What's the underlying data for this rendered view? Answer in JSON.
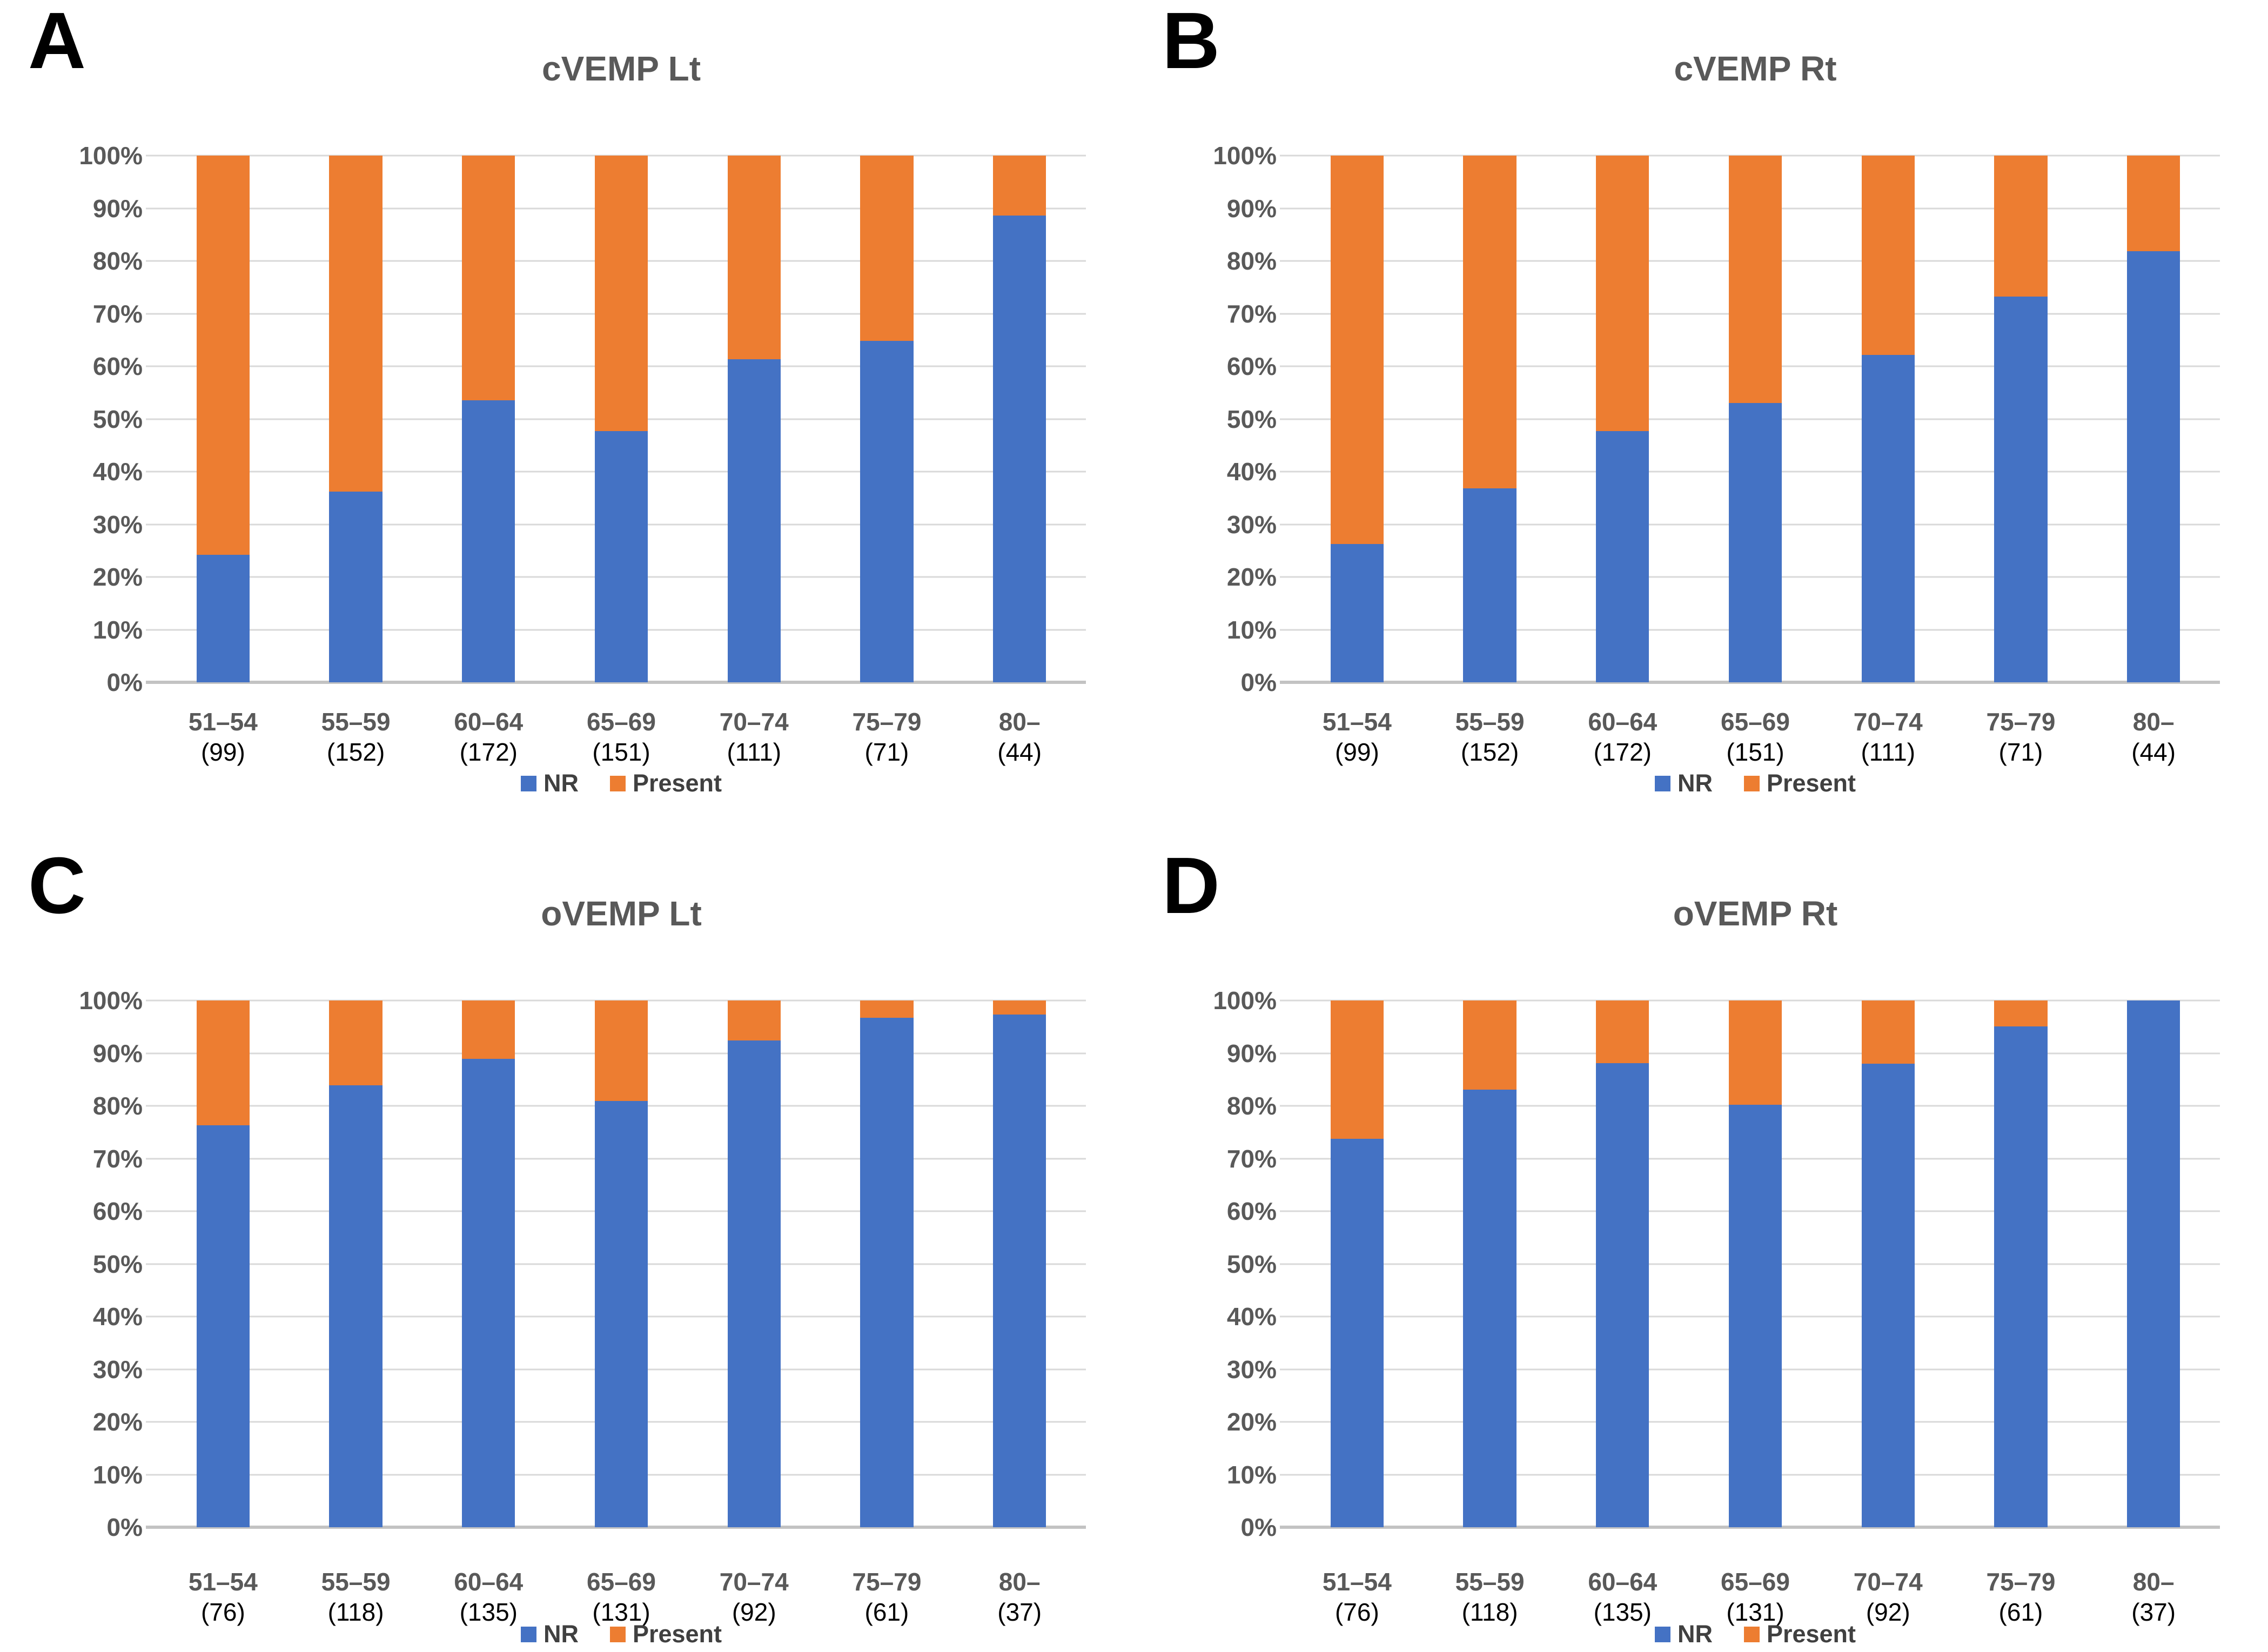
{
  "y_axis_ticks": [
    "100%",
    "90%",
    "80%",
    "70%",
    "60%",
    "50%",
    "40%",
    "30%",
    "20%",
    "10%",
    "0%"
  ],
  "colors": {
    "nr": "#4472C4",
    "present": "#ED7D31",
    "gridline": "#D9D9D9",
    "axis_line": "#C3C3C3",
    "axis_text": "#595959",
    "title_text": "#595959",
    "count_text": "#000000",
    "legend_text": "#404040"
  },
  "chart_data": [
    {
      "type": "bar",
      "stacked": true,
      "panel_label": "A",
      "title": "cVEMP Lt",
      "categories": [
        "51–54",
        "55–59",
        "60–64",
        "65–69",
        "70–74",
        "75–79",
        "80–"
      ],
      "counts": [
        "(99)",
        "(152)",
        "(172)",
        "(151)",
        "(111)",
        "(71)",
        "(44)"
      ],
      "series": [
        {
          "name": "NR",
          "color": "#4472C4",
          "values": [
            24.2,
            36.2,
            53.5,
            47.7,
            61.3,
            64.8,
            88.6
          ]
        },
        {
          "name": "Present",
          "color": "#ED7D31",
          "values": [
            75.8,
            63.8,
            46.5,
            52.3,
            38.7,
            35.2,
            11.4
          ]
        }
      ],
      "ylim": [
        0,
        100
      ],
      "y_tick_step": 10,
      "grid": true,
      "legend_position": "bottom"
    },
    {
      "type": "bar",
      "stacked": true,
      "panel_label": "B",
      "title": "cVEMP Rt",
      "categories": [
        "51–54",
        "55–59",
        "60–64",
        "65–69",
        "70–74",
        "75–79",
        "80–"
      ],
      "counts": [
        "(99)",
        "(152)",
        "(172)",
        "(151)",
        "(111)",
        "(71)",
        "(44)"
      ],
      "series": [
        {
          "name": "NR",
          "color": "#4472C4",
          "values": [
            26.3,
            36.8,
            47.7,
            53.0,
            62.2,
            73.2,
            81.8
          ]
        },
        {
          "name": "Present",
          "color": "#ED7D31",
          "values": [
            73.7,
            63.2,
            52.3,
            47.0,
            37.8,
            26.8,
            18.2
          ]
        }
      ],
      "ylim": [
        0,
        100
      ],
      "y_tick_step": 10,
      "grid": true,
      "legend_position": "bottom"
    },
    {
      "type": "bar",
      "stacked": true,
      "panel_label": "C",
      "title": "oVEMP Lt",
      "categories": [
        "51–54",
        "55–59",
        "60–64",
        "65–69",
        "70–74",
        "75–79",
        "80–"
      ],
      "counts": [
        "(76)",
        "(118)",
        "(135)",
        "(131)",
        "(92)",
        "(61)",
        "(37)"
      ],
      "series": [
        {
          "name": "NR",
          "color": "#4472C4",
          "values": [
            76.3,
            83.9,
            88.9,
            80.9,
            92.4,
            96.7,
            97.3
          ]
        },
        {
          "name": "Present",
          "color": "#ED7D31",
          "values": [
            23.7,
            16.1,
            11.1,
            19.1,
            7.6,
            3.3,
            2.7
          ]
        }
      ],
      "ylim": [
        0,
        100
      ],
      "y_tick_step": 10,
      "grid": true,
      "legend_position": "bottom"
    },
    {
      "type": "bar",
      "stacked": true,
      "panel_label": "D",
      "title": "oVEMP Rt",
      "categories": [
        "51–54",
        "55–59",
        "60–64",
        "65–69",
        "70–74",
        "75–79",
        "80–"
      ],
      "counts": [
        "(76)",
        "(118)",
        "(135)",
        "(131)",
        "(92)",
        "(61)",
        "(37)"
      ],
      "series": [
        {
          "name": "NR",
          "color": "#4472C4",
          "values": [
            73.7,
            83.1,
            88.1,
            80.2,
            88.0,
            95.1,
            100.0
          ]
        },
        {
          "name": "Present",
          "color": "#ED7D31",
          "values": [
            26.3,
            16.9,
            11.9,
            19.8,
            12.0,
            4.9,
            0.0
          ]
        }
      ],
      "ylim": [
        0,
        100
      ],
      "y_tick_step": 10,
      "grid": true,
      "legend_position": "bottom"
    }
  ]
}
